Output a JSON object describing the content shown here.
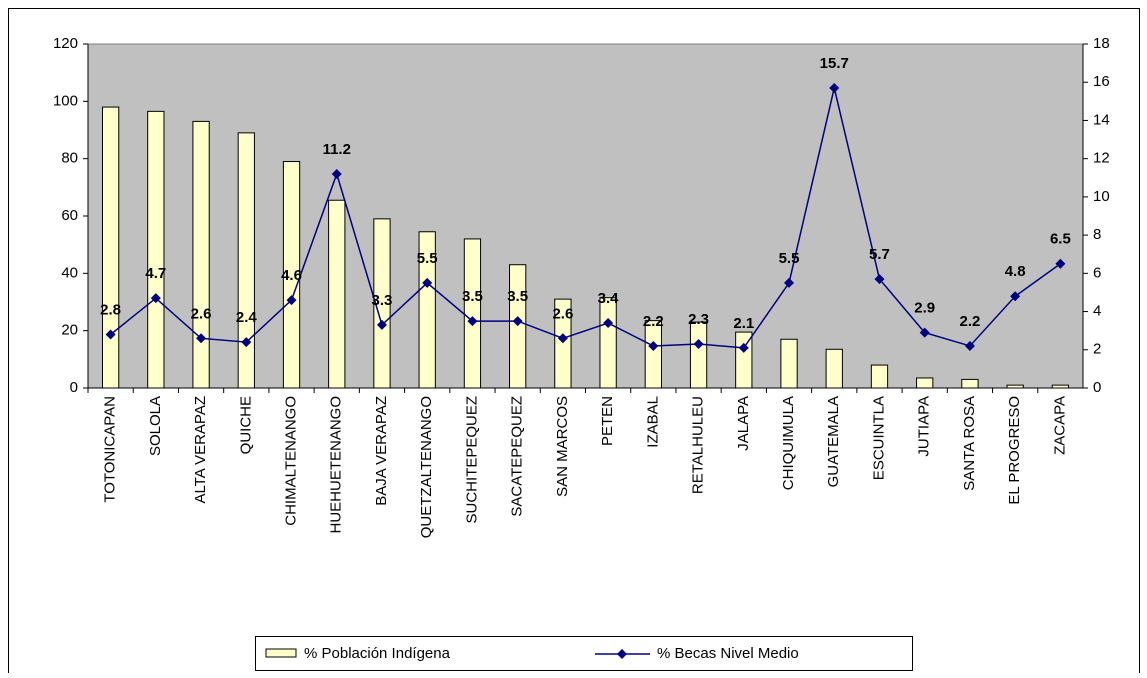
{
  "chart_data": {
    "type": "bar_line",
    "categories": [
      "TOTONICAPAN",
      "SOLOLA",
      "ALTA VERAPAZ",
      "QUICHE",
      "CHIMALTENANGO",
      "HUEHUETENANGO",
      "BAJA VERAPAZ",
      "QUETZALTENANGO",
      "SUCHITEPEQUEZ",
      "SACATEPEQUEZ",
      "SAN MARCOS",
      "PETEN",
      "IZABAL",
      "RETALHULEU",
      "JALAPA",
      "CHIQUIMULA",
      "GUATEMALA",
      "ESCUINTLA",
      "JUTIAPA",
      "SANTA ROSA",
      "EL PROGRESO",
      "ZACAPA"
    ],
    "series": [
      {
        "name": "% Población Indígena",
        "type": "bar",
        "color": "#ffffcc",
        "axis": "y",
        "values": [
          98,
          96.5,
          93,
          89,
          79,
          65.5,
          59,
          54.5,
          52,
          43,
          31,
          31.5,
          23.5,
          23,
          19.5,
          17,
          13.5,
          8,
          3.5,
          3,
          1,
          1
        ]
      },
      {
        "name": "% Becas Nivel Medio",
        "type": "line",
        "color": "#000080",
        "axis": "y2",
        "values": [
          2.8,
          4.7,
          2.6,
          2.4,
          4.6,
          11.2,
          3.3,
          5.5,
          3.5,
          3.5,
          2.6,
          3.4,
          2.2,
          2.3,
          2.1,
          5.5,
          15.7,
          5.7,
          2.9,
          2.2,
          4.8,
          6.5
        ]
      }
    ],
    "ylim": [
      0,
      120
    ],
    "yticks": [
      0,
      20,
      40,
      60,
      80,
      100,
      120
    ],
    "y2lim": [
      0,
      18
    ],
    "y2ticks": [
      0,
      2,
      4,
      6,
      8,
      10,
      12,
      14,
      16,
      18
    ],
    "plot_background": "#c0c0c0",
    "legend": "bottom"
  }
}
